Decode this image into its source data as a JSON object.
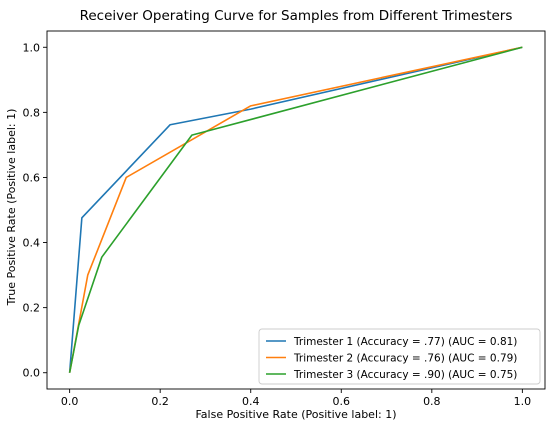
{
  "chart_data": {
    "type": "line",
    "title": "Receiver Operating Curve for Samples from Different Trimesters",
    "xlabel": "False Positive Rate (Positive label: 1)",
    "ylabel": "True Positive Rate (Positive label: 1)",
    "xlim": [
      -0.05,
      1.05
    ],
    "ylim": [
      -0.05,
      1.05
    ],
    "xticks": [
      0.0,
      0.2,
      0.4,
      0.6,
      0.8,
      1.0
    ],
    "yticks": [
      0.0,
      0.2,
      0.4,
      0.6,
      0.8,
      1.0
    ],
    "xtick_labels": [
      "0.0",
      "0.2",
      "0.4",
      "0.6",
      "0.8",
      "1.0"
    ],
    "ytick_labels": [
      "0.0",
      "0.2",
      "0.4",
      "0.6",
      "0.8",
      "1.0"
    ],
    "grid": false,
    "legend_position": "lower-right",
    "series": [
      {
        "name": "Trimester 1 (Accuracy = .77) (AUC = 0.81)",
        "color": "#1f77b4",
        "x": [
          0.0,
          0.027,
          0.222,
          0.4,
          1.0
        ],
        "y": [
          0.0,
          0.476,
          0.762,
          0.81,
          1.0
        ]
      },
      {
        "name": "Trimester 2 (Accuracy = .76) (AUC = 0.79)",
        "color": "#ff7f0e",
        "x": [
          0.0,
          0.04,
          0.125,
          0.4,
          1.0
        ],
        "y": [
          0.0,
          0.3,
          0.6,
          0.82,
          1.0
        ]
      },
      {
        "name": "Trimester 3 (Accuracy = .90) (AUC = 0.75)",
        "color": "#2ca02c",
        "x": [
          0.0,
          0.02,
          0.071,
          0.27,
          1.0
        ],
        "y": [
          0.0,
          0.145,
          0.355,
          0.73,
          1.0
        ]
      }
    ]
  }
}
